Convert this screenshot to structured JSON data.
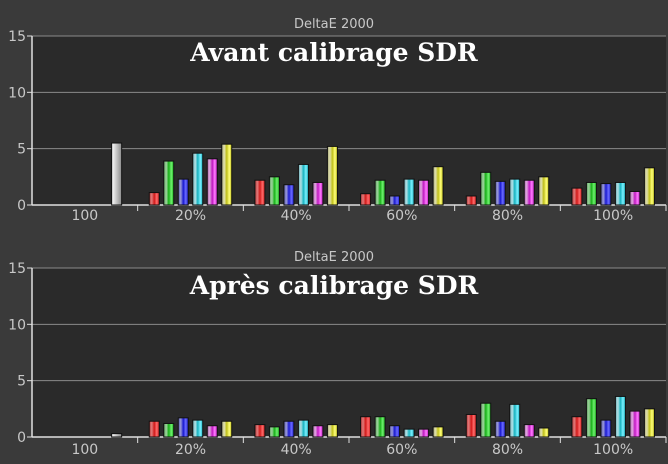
{
  "chart_data": [
    {
      "type": "bar",
      "title": "DeltaE 2000",
      "subtitle": "Avant calibrage SDR",
      "ylim": [
        0,
        15
      ],
      "yticks": [
        "0",
        "5",
        "10",
        "15"
      ],
      "grid": true,
      "categories": [
        "100",
        "20%",
        "40%",
        "60%",
        "80%",
        "100%"
      ],
      "groups": [
        {
          "label": "100",
          "bars": [
            {
              "color": "white",
              "value": 5.5
            }
          ]
        },
        {
          "label": "20%",
          "bars": [
            {
              "color": "red",
              "value": 1.1
            },
            {
              "color": "green",
              "value": 3.9
            },
            {
              "color": "blue",
              "value": 2.3
            },
            {
              "color": "cyan",
              "value": 4.6
            },
            {
              "color": "magenta",
              "value": 4.1
            },
            {
              "color": "yellow",
              "value": 5.4
            }
          ]
        },
        {
          "label": "40%",
          "bars": [
            {
              "color": "red",
              "value": 2.2
            },
            {
              "color": "green",
              "value": 2.5
            },
            {
              "color": "blue",
              "value": 1.8
            },
            {
              "color": "cyan",
              "value": 3.6
            },
            {
              "color": "magenta",
              "value": 2.0
            },
            {
              "color": "yellow",
              "value": 5.2
            }
          ]
        },
        {
          "label": "60%",
          "bars": [
            {
              "color": "red",
              "value": 1.0
            },
            {
              "color": "green",
              "value": 2.2
            },
            {
              "color": "blue",
              "value": 0.8
            },
            {
              "color": "cyan",
              "value": 2.3
            },
            {
              "color": "magenta",
              "value": 2.2
            },
            {
              "color": "yellow",
              "value": 3.4
            }
          ]
        },
        {
          "label": "80%",
          "bars": [
            {
              "color": "red",
              "value": 0.8
            },
            {
              "color": "green",
              "value": 2.9
            },
            {
              "color": "blue",
              "value": 2.1
            },
            {
              "color": "cyan",
              "value": 2.3
            },
            {
              "color": "magenta",
              "value": 2.2
            },
            {
              "color": "yellow",
              "value": 2.5
            }
          ]
        },
        {
          "label": "100%",
          "bars": [
            {
              "color": "red",
              "value": 1.5
            },
            {
              "color": "green",
              "value": 2.0
            },
            {
              "color": "blue",
              "value": 1.9
            },
            {
              "color": "cyan",
              "value": 2.0
            },
            {
              "color": "magenta",
              "value": 1.2
            },
            {
              "color": "yellow",
              "value": 3.3
            }
          ]
        }
      ]
    },
    {
      "type": "bar",
      "title": "DeltaE 2000",
      "subtitle": "Après calibrage SDR",
      "ylim": [
        0,
        15
      ],
      "yticks": [
        "0",
        "5",
        "10",
        "15"
      ],
      "grid": true,
      "categories": [
        "100",
        "20%",
        "40%",
        "60%",
        "80%",
        "100%"
      ],
      "groups": [
        {
          "label": "100",
          "bars": [
            {
              "color": "white",
              "value": 0.3
            }
          ]
        },
        {
          "label": "20%",
          "bars": [
            {
              "color": "red",
              "value": 1.4
            },
            {
              "color": "green",
              "value": 1.2
            },
            {
              "color": "blue",
              "value": 1.7
            },
            {
              "color": "cyan",
              "value": 1.5
            },
            {
              "color": "magenta",
              "value": 1.0
            },
            {
              "color": "yellow",
              "value": 1.4
            }
          ]
        },
        {
          "label": "40%",
          "bars": [
            {
              "color": "red",
              "value": 1.1
            },
            {
              "color": "green",
              "value": 0.9
            },
            {
              "color": "blue",
              "value": 1.4
            },
            {
              "color": "cyan",
              "value": 1.5
            },
            {
              "color": "magenta",
              "value": 1.0
            },
            {
              "color": "yellow",
              "value": 1.1
            }
          ]
        },
        {
          "label": "60%",
          "bars": [
            {
              "color": "red",
              "value": 1.8
            },
            {
              "color": "green",
              "value": 1.8
            },
            {
              "color": "blue",
              "value": 1.0
            },
            {
              "color": "cyan",
              "value": 0.7
            },
            {
              "color": "magenta",
              "value": 0.7
            },
            {
              "color": "yellow",
              "value": 0.9
            }
          ]
        },
        {
          "label": "80%",
          "bars": [
            {
              "color": "red",
              "value": 2.0
            },
            {
              "color": "green",
              "value": 3.0
            },
            {
              "color": "blue",
              "value": 1.4
            },
            {
              "color": "cyan",
              "value": 2.9
            },
            {
              "color": "magenta",
              "value": 1.1
            },
            {
              "color": "yellow",
              "value": 0.8
            }
          ]
        },
        {
          "label": "100%",
          "bars": [
            {
              "color": "red",
              "value": 1.8
            },
            {
              "color": "green",
              "value": 3.4
            },
            {
              "color": "blue",
              "value": 1.5
            },
            {
              "color": "cyan",
              "value": 3.6
            },
            {
              "color": "magenta",
              "value": 2.3
            },
            {
              "color": "yellow",
              "value": 2.5
            }
          ]
        }
      ]
    }
  ],
  "palette": {
    "white": [
      "#ffffff",
      "#8a8a8a"
    ],
    "red": [
      "#b33a3a",
      "#e07a7a",
      "#d11a1a",
      "#ff6a6a",
      "#d11a1a"
    ],
    "green": [
      "#5f9f5f",
      "#9fd49f",
      "#19b019",
      "#6ef06e",
      "#19b019"
    ],
    "blue": [
      "#5a5aa6",
      "#9a9ad8",
      "#1a1ad0",
      "#6a6aff",
      "#1a1ad0"
    ],
    "cyan": [
      "#6fa9b0",
      "#b3e0e6",
      "#19b3c0",
      "#7af0ff",
      "#19b3c0"
    ],
    "magenta": [
      "#a96aa9",
      "#e0a8e0",
      "#c019c0",
      "#ff7aff",
      "#c019c0"
    ],
    "yellow": [
      "#a9a97a",
      "#e0e0b0",
      "#c0c019",
      "#ffff7a",
      "#c0c019"
    ],
    "background": "#3a3a3a",
    "plot": "#2a2a2a",
    "grid": "#8a8a8a",
    "text": "#c8c8c8",
    "title": "#ffffff"
  }
}
